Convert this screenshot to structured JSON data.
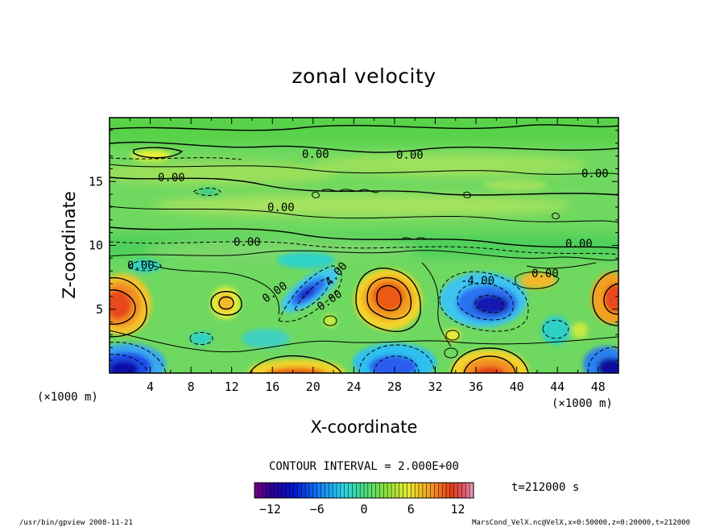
{
  "chart_data": {
    "type": "heatmap",
    "title": "zonal velocity",
    "xlabel": "X-coordinate",
    "ylabel": "Z-coordinate",
    "x_unit": "(×1000 m)",
    "z_unit": "(×1000 m)",
    "xlim": [
      0,
      50
    ],
    "ylim": [
      0,
      20
    ],
    "x_ticks": [
      4,
      8,
      12,
      16,
      20,
      24,
      28,
      32,
      36,
      40,
      44,
      48
    ],
    "y_ticks": [
      5,
      10,
      15
    ],
    "contour_interval_text": "CONTOUR INTERVAL = 2.000E+00",
    "contour_labels": [
      "0.00",
      "0.00",
      "0.00",
      "0.00",
      "0.00",
      "0.00",
      "0.00",
      "0.00",
      "0.00",
      "0.00",
      "4.00",
      "-4.00",
      "0.00"
    ],
    "time_label": "t=212000 s",
    "colorbar": {
      "range": [
        -14,
        14
      ],
      "ticks": [
        -12,
        -6,
        0,
        6,
        12
      ]
    },
    "features": [
      {
        "kind": "positive maximum",
        "x": 1,
        "z": 5.5
      },
      {
        "kind": "positive maximum",
        "x": 27.5,
        "z": 6
      },
      {
        "kind": "positive maximum",
        "x": 49,
        "z": 6
      },
      {
        "kind": "positive maximum",
        "x": 37.5,
        "z": 1
      },
      {
        "kind": "positive maximum",
        "x": 18,
        "z": 0.7
      },
      {
        "kind": "negative minimum",
        "x": 37.5,
        "z": 5
      },
      {
        "kind": "negative minimum",
        "x": 18.5,
        "z": 6
      },
      {
        "kind": "negative minimum",
        "x": 1,
        "z": 1
      },
      {
        "kind": "negative minimum",
        "x": 28,
        "z": 1.2
      }
    ]
  },
  "footer": {
    "left": "/usr/bin/gpview  2008-11-21",
    "right": "MarsCond_VelX.nc@VelX,x=0:50000,z=0:20000,t=212000"
  }
}
